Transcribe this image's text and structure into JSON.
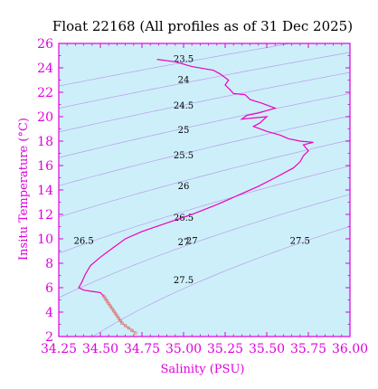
{
  "chart_data": {
    "type": "line",
    "title": "Float 22168  (All profiles as of 31 Dec 2025)",
    "xlabel": "Salinity (PSU)",
    "ylabel": "Insitu Temperature (°C)",
    "xlim": [
      34.25,
      36.0
    ],
    "ylim": [
      2,
      26
    ],
    "x_ticks": [
      "34.25",
      "34.50",
      "34.75",
      "35.00",
      "35.25",
      "35.50",
      "35.75",
      "36.00"
    ],
    "y_ticks": [
      "2",
      "4",
      "6",
      "8",
      "10",
      "12",
      "14",
      "16",
      "18",
      "20",
      "22",
      "24",
      "26"
    ],
    "grid": false,
    "colors": {
      "background": "#cdeffa",
      "axes": "#dd00dd",
      "profile": "#ee00bb",
      "deep_profile": "#e07070",
      "contours": "#b8a0e8"
    },
    "density_contours": [
      {
        "sigma": 23.5,
        "label": "23.5"
      },
      {
        "sigma": 24.0,
        "label": "24"
      },
      {
        "sigma": 24.5,
        "label": "24.5"
      },
      {
        "sigma": 25.0,
        "label": "25"
      },
      {
        "sigma": 25.5,
        "label": "25.5"
      },
      {
        "sigma": 26.0,
        "label": "26"
      },
      {
        "sigma": 26.5,
        "label": "26.5"
      },
      {
        "sigma": 27.0,
        "label": "27"
      },
      {
        "sigma": 27.5,
        "label": "27.5"
      }
    ],
    "contour_labels": [
      {
        "text": "23.5",
        "s": 35.0,
        "t": 24.7
      },
      {
        "text": "24",
        "s": 35.0,
        "t": 23.0
      },
      {
        "text": "24.5",
        "s": 35.0,
        "t": 20.9
      },
      {
        "text": "25",
        "s": 35.0,
        "t": 18.9
      },
      {
        "text": "25.5",
        "s": 35.0,
        "t": 16.8
      },
      {
        "text": "26",
        "s": 35.0,
        "t": 14.3
      },
      {
        "text": "26.5",
        "s": 35.0,
        "t": 11.7
      },
      {
        "text": "26.5",
        "s": 34.4,
        "t": 9.8
      },
      {
        "text": "27",
        "s": 35.0,
        "t": 9.7
      },
      {
        "text": "27",
        "s": 35.05,
        "t": 9.8
      },
      {
        "text": "27.5",
        "s": 35.0,
        "t": 6.6
      },
      {
        "text": "27.5",
        "s": 35.7,
        "t": 9.8
      }
    ],
    "series": [
      {
        "style": "line",
        "color": "#ee00bb",
        "points": [
          [
            34.84,
            24.7
          ],
          [
            34.95,
            24.5
          ],
          [
            35.05,
            24.1
          ],
          [
            35.18,
            23.8
          ],
          [
            35.22,
            23.5
          ],
          [
            35.27,
            23.0
          ],
          [
            35.25,
            22.6
          ],
          [
            35.28,
            22.2
          ],
          [
            35.3,
            21.9
          ],
          [
            35.37,
            21.8
          ],
          [
            35.4,
            21.4
          ],
          [
            35.47,
            21.1
          ],
          [
            35.55,
            20.7
          ],
          [
            35.45,
            20.3
          ],
          [
            35.38,
            20.1
          ],
          [
            35.35,
            19.8
          ],
          [
            35.42,
            19.9
          ],
          [
            35.5,
            20.0
          ],
          [
            35.46,
            19.5
          ],
          [
            35.42,
            19.2
          ],
          [
            35.5,
            18.8
          ],
          [
            35.58,
            18.5
          ],
          [
            35.63,
            18.2
          ],
          [
            35.7,
            18.0
          ],
          [
            35.78,
            17.9
          ],
          [
            35.72,
            17.7
          ],
          [
            35.75,
            17.2
          ],
          [
            35.72,
            16.8
          ],
          [
            35.7,
            16.3
          ],
          [
            35.66,
            15.8
          ],
          [
            35.55,
            15.0
          ],
          [
            35.45,
            14.3
          ],
          [
            35.35,
            13.7
          ],
          [
            35.2,
            12.8
          ],
          [
            35.05,
            12.0
          ],
          [
            34.9,
            11.3
          ],
          [
            34.75,
            10.6
          ],
          [
            34.65,
            10.0
          ],
          [
            34.58,
            9.3
          ],
          [
            34.5,
            8.5
          ],
          [
            34.44,
            7.8
          ],
          [
            34.41,
            7.1
          ],
          [
            34.39,
            6.5
          ],
          [
            34.37,
            6.0
          ],
          [
            34.4,
            5.8
          ],
          [
            34.45,
            5.7
          ],
          [
            34.5,
            5.6
          ],
          [
            34.52,
            5.3
          ]
        ]
      },
      {
        "style": "markers",
        "color": "#e07070",
        "points": [
          [
            34.52,
            5.3
          ],
          [
            34.53,
            5.1
          ],
          [
            34.54,
            4.9
          ],
          [
            34.55,
            4.7
          ],
          [
            34.56,
            4.5
          ],
          [
            34.57,
            4.3
          ],
          [
            34.58,
            4.1
          ],
          [
            34.59,
            3.9
          ],
          [
            34.6,
            3.7
          ],
          [
            34.61,
            3.5
          ],
          [
            34.62,
            3.3
          ],
          [
            34.63,
            3.1
          ],
          [
            34.65,
            2.9
          ],
          [
            34.67,
            2.7
          ],
          [
            34.69,
            2.5
          ],
          [
            34.71,
            2.3
          ]
        ]
      }
    ]
  }
}
